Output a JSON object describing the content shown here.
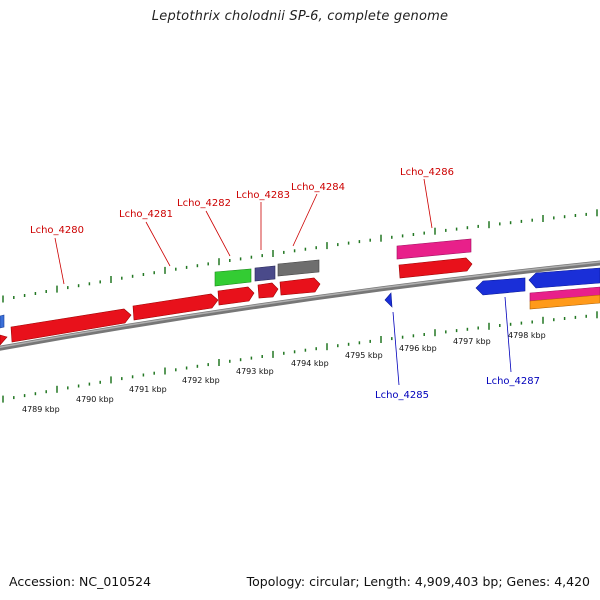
{
  "title": "Leptothrix cholodnii SP-6, complete genome",
  "footer": {
    "accession": "Accession: NC_010524",
    "summary": "Topology: circular; Length: 4,909,403 bp; Genes: 4,420"
  },
  "colors": {
    "forward_label": "#cc0000",
    "reverse_label": "#0000bb",
    "tick": "#227722",
    "backbone": "#808080"
  },
  "forward_gene_labels": [
    "Lcho_4280",
    "Lcho_4281",
    "Lcho_4282",
    "Lcho_4283",
    "Lcho_4284",
    "Lcho_4286"
  ],
  "reverse_gene_labels": [
    "Lcho_4285",
    "Lcho_4287"
  ],
  "kbp_labels": [
    "4789 kbp",
    "4790 kbp",
    "4791 kbp",
    "4792 kbp",
    "4793 kbp",
    "4794 kbp",
    "4795 kbp",
    "4796 kbp",
    "4797 kbp",
    "4798 kbp"
  ]
}
